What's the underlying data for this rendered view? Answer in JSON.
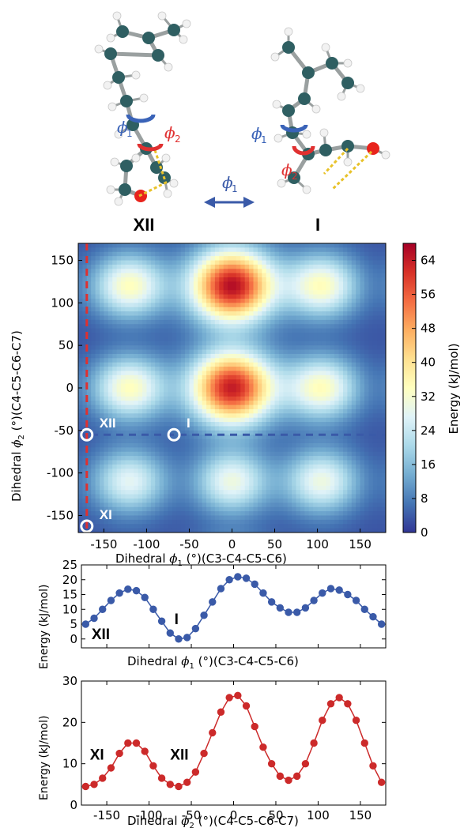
{
  "molecules": {
    "left_label": "XII",
    "right_label": "I",
    "phi1_text": "ϕ",
    "phi1_sub": "1",
    "phi2_text": "ϕ",
    "phi2_sub": "2",
    "arrow_label_main": "ϕ",
    "arrow_label_sub": "1",
    "colors": {
      "carbon": "#2f5f62",
      "hydrogen": "#f2f2f2",
      "oxygen": "#e8231c",
      "phi1": "#3a63b8",
      "phi2": "#e03030",
      "hbond": "#e8c22a"
    }
  },
  "chart_data": [
    {
      "type": "heatmap",
      "xlabel_pre": "Dihedral ",
      "xlabel_sym": "ϕ",
      "xlabel_sub": "1",
      "xlabel_post": " (°)(C3-C4-C5-C6)",
      "ylabel_pre": "Dihedral ",
      "ylabel_sym": "ϕ",
      "ylabel_sub": "2",
      "ylabel_post": " (°)(C4-C5-C6-C7)",
      "xlim": [
        -180,
        180
      ],
      "ylim": [
        -170,
        170
      ],
      "xticks": [
        -150,
        -100,
        -50,
        0,
        50,
        100,
        150
      ],
      "yticks": [
        -150,
        -100,
        -50,
        0,
        50,
        100,
        150
      ],
      "colorbar": {
        "label": "Energy (kJ/mol)",
        "min": 0,
        "max": 68,
        "ticks": [
          0,
          8,
          16,
          24,
          32,
          40,
          48,
          56,
          64
        ]
      },
      "colormap": "RdYlBu_r",
      "peaks": [
        {
          "x": 0,
          "y": 120,
          "value": 66
        },
        {
          "x": 0,
          "y": 0,
          "value": 64
        },
        {
          "x": -120,
          "y": 120,
          "value": 34
        },
        {
          "x": -120,
          "y": 0,
          "value": 34
        },
        {
          "x": 105,
          "y": 120,
          "value": 34
        },
        {
          "x": 105,
          "y": 0,
          "value": 34
        },
        {
          "x": 105,
          "y": -110,
          "value": 30
        },
        {
          "x": -120,
          "y": -110,
          "value": 28
        },
        {
          "x": 0,
          "y": -110,
          "value": 30
        }
      ],
      "minima_markers": [
        {
          "x": -170,
          "y": -55,
          "label": "XII"
        },
        {
          "x": -68,
          "y": -55,
          "label": "I"
        },
        {
          "x": -170,
          "y": -170,
          "label": "XI"
        }
      ],
      "scan_lines": [
        {
          "orientation": "horizontal",
          "at": -55,
          "color": "#3a5aa8"
        },
        {
          "orientation": "vertical",
          "at": -170,
          "color": "#e03030"
        }
      ]
    },
    {
      "type": "line",
      "ylabel": "Energy (kJ/mol)",
      "xlabel_pre": "Dihedral ",
      "xlabel_sym": "ϕ",
      "xlabel_sub": "1",
      "xlabel_post": " (°)(C3-C4-C5-C6)",
      "xlim": [
        -180,
        180
      ],
      "ylim": [
        -3,
        25
      ],
      "yticks": [
        0,
        5,
        10,
        15,
        20,
        25
      ],
      "color": "#3a5aa8",
      "series": [
        {
          "x": [
            -175,
            -165,
            -155,
            -145,
            -135,
            -125,
            -115,
            -105,
            -95,
            -85,
            -75,
            -65,
            -55,
            -45,
            -35,
            -25,
            -15,
            -5,
            5,
            15,
            25,
            35,
            45,
            55,
            65,
            75,
            85,
            95,
            105,
            115,
            125,
            135,
            145,
            155,
            165,
            175
          ],
          "values": [
            5,
            7,
            10,
            13,
            15.5,
            16.8,
            16.3,
            14,
            10,
            6,
            2,
            0,
            0.5,
            3.5,
            8,
            12.5,
            17,
            20,
            21,
            20.5,
            18.5,
            15.5,
            12.5,
            10.5,
            9,
            9,
            10.5,
            13,
            15.5,
            17,
            16.5,
            15,
            13,
            10,
            7.5,
            5
          ]
        }
      ],
      "annotations": [
        {
          "text": "XII",
          "x": -168,
          "y": 0
        },
        {
          "text": "I",
          "x": -70,
          "y": 5
        }
      ]
    },
    {
      "type": "line",
      "ylabel": "Energy (kJ/mol)",
      "xlabel_pre": "Dihedral ",
      "xlabel_sym": "ϕ",
      "xlabel_sub": "2",
      "xlabel_post": " (°)(C4-C5-C6-C7)",
      "xlim": [
        -180,
        180
      ],
      "ylim": [
        0,
        30
      ],
      "yticks": [
        0,
        10,
        20,
        30
      ],
      "xticks": [
        -150,
        -100,
        -50,
        0,
        50,
        100,
        150
      ],
      "color": "#cc2a2a",
      "series": [
        {
          "x": [
            -175,
            -165,
            -155,
            -145,
            -135,
            -125,
            -115,
            -105,
            -95,
            -85,
            -75,
            -65,
            -55,
            -45,
            -35,
            -25,
            -15,
            -5,
            5,
            15,
            25,
            35,
            45,
            55,
            65,
            75,
            85,
            95,
            105,
            115,
            125,
            135,
            145,
            155,
            165,
            175
          ],
          "values": [
            4.5,
            5,
            6.5,
            9,
            12.5,
            15,
            15,
            13,
            9.5,
            6.5,
            5,
            4.5,
            5.5,
            8,
            12.5,
            17.5,
            22.5,
            26,
            26.5,
            24,
            19,
            14,
            10,
            7,
            6,
            7,
            10,
            15,
            20.5,
            24.5,
            26,
            24.5,
            20.5,
            15,
            9.5,
            5.5
          ]
        }
      ],
      "annotations": [
        {
          "text": "XI",
          "x": -170,
          "y": 11
        },
        {
          "text": "XII",
          "x": -75,
          "y": 11
        }
      ]
    }
  ]
}
